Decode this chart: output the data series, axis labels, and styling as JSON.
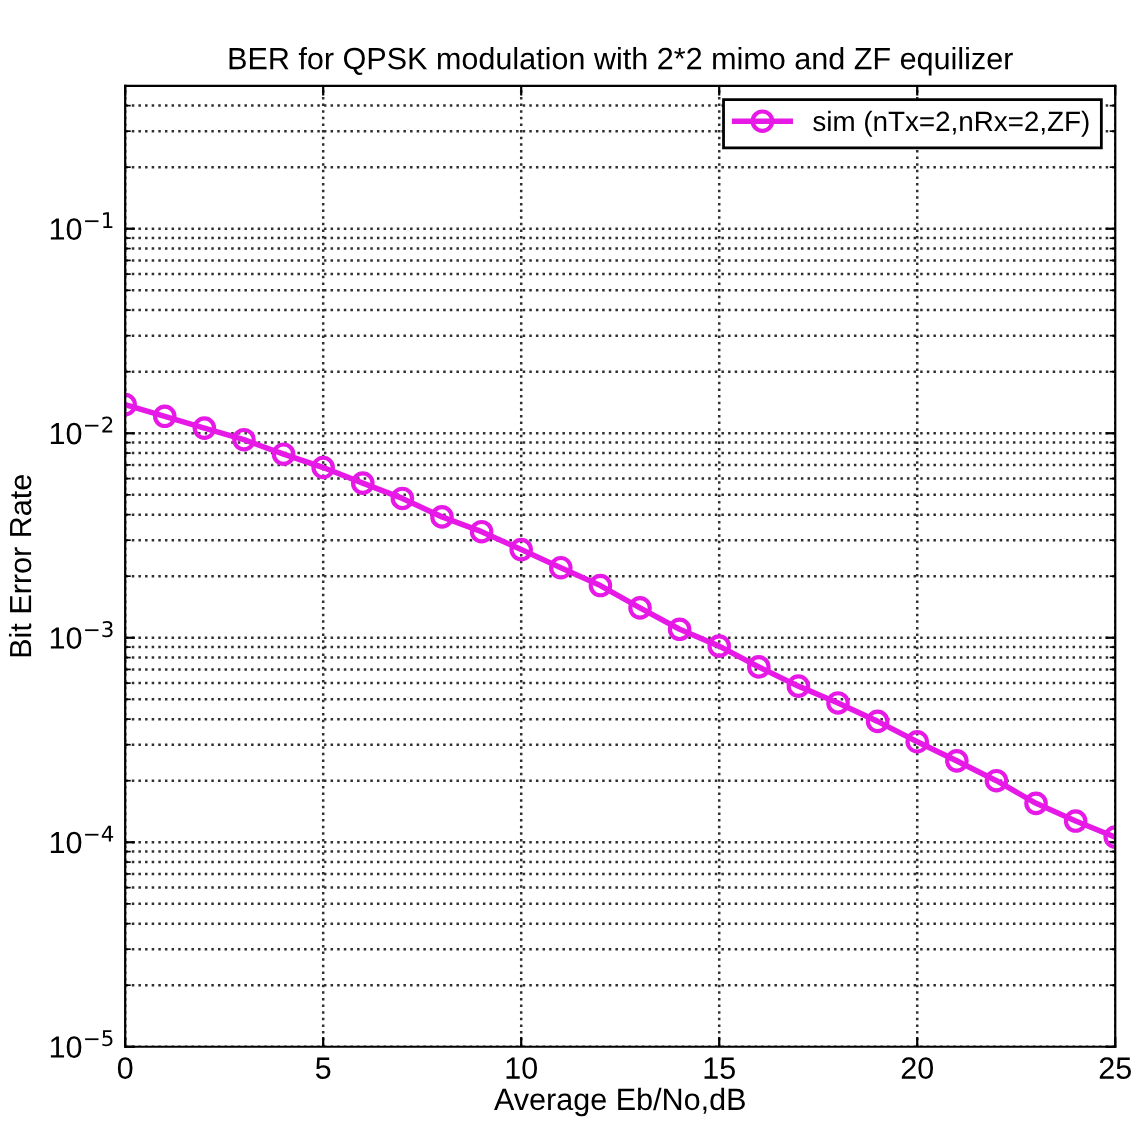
{
  "chart_data": {
    "type": "line",
    "title": "BER for QPSK modulation with 2*2 mimo and ZF equilizer",
    "xlabel": "Average Eb/No,dB",
    "ylabel": "Bit Error Rate",
    "x": [
      0,
      1,
      2,
      3,
      4,
      5,
      6,
      7,
      8,
      9,
      10,
      11,
      12,
      13,
      14,
      15,
      16,
      17,
      18,
      19,
      20,
      21,
      22,
      23,
      24,
      25
    ],
    "series": [
      {
        "name": "sim (nTx=2,nRx=2,ZF)",
        "color": "#e619e6",
        "values": [
          0.0138,
          0.0121,
          0.0106,
          0.0093,
          0.0079,
          0.0068,
          0.0057,
          0.0048,
          0.0039,
          0.0033,
          0.0027,
          0.0022,
          0.0018,
          0.0014,
          0.0011,
          0.00091,
          0.00072,
          0.00058,
          0.00048,
          0.00039,
          0.00031,
          0.00025,
          0.0002,
          0.000155,
          0.000127,
          0.000106
        ]
      }
    ],
    "log": "y",
    "xlim": [
      0,
      25
    ],
    "xticks": [
      0,
      5,
      10,
      15,
      20,
      25
    ],
    "ylim": [
      1e-05,
      0.5
    ],
    "yticks": [
      {
        "value": 1e-05,
        "label": "10$^{−5}$"
      },
      {
        "value": 0.0001,
        "label": "10$^{−4}$"
      },
      {
        "value": 0.001,
        "label": "10$^{−3}$"
      },
      {
        "value": 0.01,
        "label": "10$^{−2}$"
      },
      {
        "value": 0.1,
        "label": "10$^{−1}$"
      }
    ],
    "grid": true,
    "legend": "top right",
    "marker": "circle",
    "line_style": "solid"
  }
}
